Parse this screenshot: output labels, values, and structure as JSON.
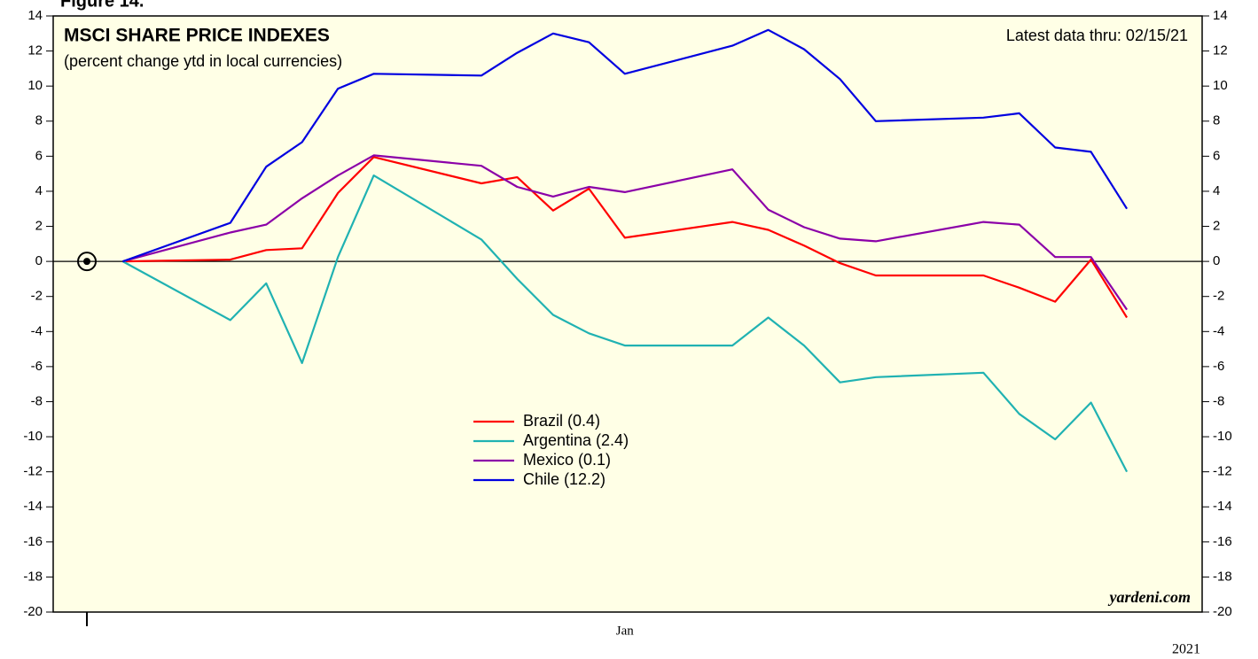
{
  "chart_data": {
    "type": "line",
    "figure_label": "Figure 14.",
    "title": "MSCI SHARE PRICE INDEXES",
    "subtitle": "(percent change ytd in local currencies)",
    "annotation": "Latest data thru: 02/15/21",
    "source": "yardeni.com",
    "x_label": "2021",
    "x": [
      1,
      4,
      5,
      6,
      7,
      8,
      11,
      12,
      13,
      14,
      15,
      18,
      19,
      20,
      21,
      22,
      25,
      26,
      27,
      28,
      29
    ],
    "xlim": [
      -0.94,
      31.1
    ],
    "xticks": [
      {
        "value": 15,
        "label": "Jan"
      }
    ],
    "x_major_ticks": [
      0
    ],
    "ylim": [
      -20,
      14
    ],
    "yticks": [
      -20,
      -18,
      -16,
      -14,
      -12,
      -10,
      -8,
      -6,
      -4,
      -2,
      0,
      2,
      4,
      6,
      8,
      10,
      12,
      14
    ],
    "zero_line": true,
    "background": "#ffffe6",
    "series": [
      {
        "name": "Brazil (0.4)",
        "color": "#ff0000",
        "values": [
          0,
          0.1,
          0.65,
          0.75,
          3.9,
          5.95,
          4.45,
          4.8,
          2.9,
          4.15,
          1.35,
          2.25,
          1.8,
          0.9,
          -0.1,
          -0.8,
          -0.8,
          -1.5,
          -2.3,
          0.1,
          -3.2
        ]
      },
      {
        "name": "Argentina (2.4)",
        "color": "#20b2b2",
        "values": [
          0,
          -3.35,
          -1.25,
          -5.8,
          0.25,
          4.9,
          1.25,
          -1.0,
          -3.05,
          -4.1,
          -4.8,
          -4.8,
          -3.2,
          -4.8,
          -6.9,
          -6.6,
          -6.35,
          -8.7,
          -10.15,
          -8.05,
          -12.0
        ]
      },
      {
        "name": "Mexico (0.1)",
        "color": "#8b00a8",
        "values": [
          0,
          1.65,
          2.1,
          3.6,
          4.9,
          6.05,
          5.45,
          4.25,
          3.7,
          4.25,
          3.95,
          5.25,
          2.95,
          1.95,
          1.3,
          1.15,
          2.25,
          2.1,
          0.25,
          0.25,
          -2.75
        ]
      },
      {
        "name": "Chile (12.2)",
        "color": "#0000e0",
        "values": [
          0,
          2.2,
          5.4,
          6.8,
          9.85,
          10.7,
          10.6,
          11.9,
          13.0,
          12.5,
          10.7,
          12.3,
          13.2,
          12.1,
          10.4,
          8.0,
          8.2,
          8.45,
          6.5,
          6.25,
          3.0
        ]
      }
    ]
  }
}
